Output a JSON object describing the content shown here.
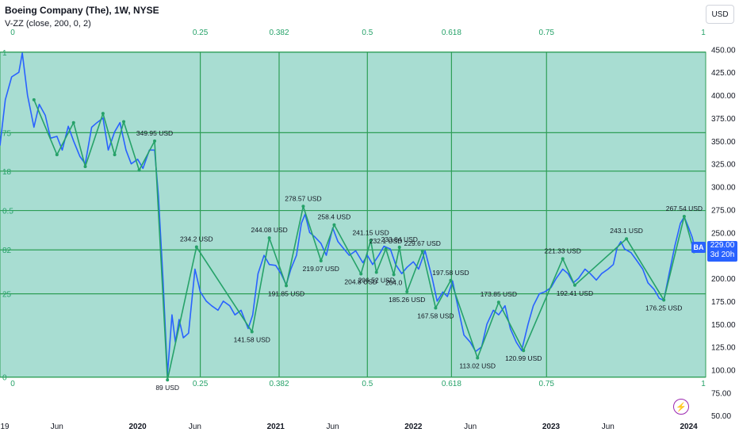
{
  "header": {
    "title": "Boeing Company (The), 1W, NYSE",
    "indicator": "V-ZZ (close, 200, 0, 2)"
  },
  "toolbar": {
    "currency_label": "USD"
  },
  "price_tag": {
    "symbol": "BA",
    "price": "229.00",
    "countdown": "3d 20h"
  },
  "icons": {
    "alert": "lightning-icon"
  },
  "colors": {
    "price_line": "#2962ff",
    "zigzag": "#26a269",
    "fib_fill": "#a8ddd2",
    "fib_lines": "#2e9e57",
    "fib_labels": "#26a269"
  },
  "chart_data": {
    "type": "line",
    "title": "Boeing Company (The), 1W, NYSE",
    "y_axis": {
      "ticks": [
        "450.00",
        "425.00",
        "400.00",
        "375.00",
        "350.00",
        "325.00",
        "300.00",
        "275.00",
        "250.00",
        "225.00",
        "200.00",
        "175.00",
        "150.00",
        "125.00",
        "100.00",
        "75.00",
        "50.00"
      ],
      "ylim": [
        45,
        465
      ],
      "currency": "USD"
    },
    "x_axis": {
      "ticks": [
        {
          "label": "19",
          "x": "2019-01-01"
        },
        {
          "label": "Jun",
          "x": "2019-06-01"
        },
        {
          "label": "2020",
          "x": "2020-01-01"
        },
        {
          "label": "Jun",
          "x": "2020-06-01"
        },
        {
          "label": "2021",
          "x": "2021-01-01"
        },
        {
          "label": "Jun",
          "x": "2021-06-01"
        },
        {
          "label": "2022",
          "x": "2022-01-01"
        },
        {
          "label": "Jun",
          "x": "2022-06-01"
        },
        {
          "label": "2023",
          "x": "2023-01-01"
        },
        {
          "label": "Jun",
          "x": "2023-06-01"
        },
        {
          "label": "2024",
          "x": "2024-01-01"
        }
      ],
      "xlim": [
        "2019-01-01",
        "2024-02-15"
      ]
    },
    "fib_time": {
      "top_labels": [
        "0",
        "0.25",
        "0.382",
        "0.5",
        "0.618",
        "0.75",
        "1"
      ],
      "bottom_labels": [
        "0",
        "0.25",
        "0.382",
        "0.5",
        "0.618",
        "0.75",
        "1"
      ],
      "vertical_lines": [
        {
          "label": "0.25",
          "x": "2020-06-15"
        },
        {
          "label": "0.382",
          "x": "2021-01-10"
        },
        {
          "label": "0.5",
          "x": "2021-09-01"
        },
        {
          "label": "0.618",
          "x": "2022-04-12"
        },
        {
          "label": "0.75",
          "x": "2022-12-20"
        }
      ],
      "left_labels": [
        {
          "label": "1",
          "y": 447
        },
        {
          "label": "75",
          "y": 359
        },
        {
          "label": "18",
          "y": 317
        },
        {
          "label": "0.5",
          "y": 274
        },
        {
          "label": "82",
          "y": 231
        },
        {
          "label": "25",
          "y": 183
        },
        {
          "label": "0",
          "y": 92
        }
      ],
      "horizontal_levels": [
        447,
        359,
        317,
        274,
        231,
        183,
        92
      ],
      "box": {
        "x0": "2019-01-01",
        "x1": "2024-02-15",
        "y0": 92,
        "y1": 447
      }
    },
    "series": [
      {
        "type": "line",
        "values": [
          {
            "x": "2019-01-01",
            "y": 345
          },
          {
            "x": "2019-01-15",
            "y": 395
          },
          {
            "x": "2019-02-01",
            "y": 420
          },
          {
            "x": "2019-02-20",
            "y": 425
          },
          {
            "x": "2019-03-01",
            "y": 446
          },
          {
            "x": "2019-03-15",
            "y": 400
          },
          {
            "x": "2019-04-01",
            "y": 365
          },
          {
            "x": "2019-04-15",
            "y": 390
          },
          {
            "x": "2019-05-01",
            "y": 378
          },
          {
            "x": "2019-05-15",
            "y": 353
          },
          {
            "x": "2019-06-01",
            "y": 355
          },
          {
            "x": "2019-06-15",
            "y": 340
          },
          {
            "x": "2019-07-01",
            "y": 366
          },
          {
            "x": "2019-07-15",
            "y": 350
          },
          {
            "x": "2019-08-01",
            "y": 333
          },
          {
            "x": "2019-08-15",
            "y": 325
          },
          {
            "x": "2019-09-01",
            "y": 365
          },
          {
            "x": "2019-09-15",
            "y": 370
          },
          {
            "x": "2019-10-01",
            "y": 375
          },
          {
            "x": "2019-10-15",
            "y": 340
          },
          {
            "x": "2019-11-01",
            "y": 360
          },
          {
            "x": "2019-11-15",
            "y": 370
          },
          {
            "x": "2019-12-01",
            "y": 340
          },
          {
            "x": "2019-12-15",
            "y": 325
          },
          {
            "x": "2020-01-01",
            "y": 330
          },
          {
            "x": "2020-01-15",
            "y": 320
          },
          {
            "x": "2020-02-01",
            "y": 340
          },
          {
            "x": "2020-02-15",
            "y": 340
          },
          {
            "x": "2020-02-25",
            "y": 290
          },
          {
            "x": "2020-03-08",
            "y": 200
          },
          {
            "x": "2020-03-20",
            "y": 95
          },
          {
            "x": "2020-04-01",
            "y": 160
          },
          {
            "x": "2020-04-10",
            "y": 130
          },
          {
            "x": "2020-04-20",
            "y": 155
          },
          {
            "x": "2020-05-01",
            "y": 135
          },
          {
            "x": "2020-05-15",
            "y": 140
          },
          {
            "x": "2020-06-01",
            "y": 210
          },
          {
            "x": "2020-06-15",
            "y": 185
          },
          {
            "x": "2020-07-01",
            "y": 175
          },
          {
            "x": "2020-07-15",
            "y": 170
          },
          {
            "x": "2020-08-01",
            "y": 165
          },
          {
            "x": "2020-08-15",
            "y": 175
          },
          {
            "x": "2020-09-01",
            "y": 170
          },
          {
            "x": "2020-09-15",
            "y": 160
          },
          {
            "x": "2020-10-01",
            "y": 165
          },
          {
            "x": "2020-10-20",
            "y": 145
          },
          {
            "x": "2020-11-01",
            "y": 160
          },
          {
            "x": "2020-11-15",
            "y": 205
          },
          {
            "x": "2020-12-01",
            "y": 225
          },
          {
            "x": "2020-12-15",
            "y": 215
          },
          {
            "x": "2021-01-01",
            "y": 214
          },
          {
            "x": "2021-01-15",
            "y": 205
          },
          {
            "x": "2021-01-29",
            "y": 193
          },
          {
            "x": "2021-02-10",
            "y": 210
          },
          {
            "x": "2021-02-25",
            "y": 225
          },
          {
            "x": "2021-03-10",
            "y": 260
          },
          {
            "x": "2021-03-20",
            "y": 270
          },
          {
            "x": "2021-04-01",
            "y": 250
          },
          {
            "x": "2021-04-15",
            "y": 245
          },
          {
            "x": "2021-05-01",
            "y": 238
          },
          {
            "x": "2021-05-15",
            "y": 225
          },
          {
            "x": "2021-06-01",
            "y": 255
          },
          {
            "x": "2021-06-15",
            "y": 240
          },
          {
            "x": "2021-07-01",
            "y": 232
          },
          {
            "x": "2021-07-15",
            "y": 225
          },
          {
            "x": "2021-08-01",
            "y": 230
          },
          {
            "x": "2021-08-20",
            "y": 217
          },
          {
            "x": "2021-09-01",
            "y": 225
          },
          {
            "x": "2021-09-15",
            "y": 215
          },
          {
            "x": "2021-10-01",
            "y": 225
          },
          {
            "x": "2021-10-15",
            "y": 235
          },
          {
            "x": "2021-11-01",
            "y": 232
          },
          {
            "x": "2021-11-15",
            "y": 215
          },
          {
            "x": "2021-12-01",
            "y": 205
          },
          {
            "x": "2021-12-15",
            "y": 212
          },
          {
            "x": "2022-01-01",
            "y": 218
          },
          {
            "x": "2022-01-15",
            "y": 210
          },
          {
            "x": "2022-02-01",
            "y": 230
          },
          {
            "x": "2022-02-20",
            "y": 200
          },
          {
            "x": "2022-03-05",
            "y": 175
          },
          {
            "x": "2022-03-20",
            "y": 185
          },
          {
            "x": "2022-04-01",
            "y": 180
          },
          {
            "x": "2022-04-15",
            "y": 197
          },
          {
            "x": "2022-05-01",
            "y": 165
          },
          {
            "x": "2022-05-15",
            "y": 138
          },
          {
            "x": "2022-06-01",
            "y": 130
          },
          {
            "x": "2022-06-15",
            "y": 120
          },
          {
            "x": "2022-07-01",
            "y": 125
          },
          {
            "x": "2022-07-15",
            "y": 150
          },
          {
            "x": "2022-08-01",
            "y": 165
          },
          {
            "x": "2022-08-15",
            "y": 160
          },
          {
            "x": "2022-09-01",
            "y": 170
          },
          {
            "x": "2022-09-15",
            "y": 145
          },
          {
            "x": "2022-10-01",
            "y": 130
          },
          {
            "x": "2022-10-15",
            "y": 121
          },
          {
            "x": "2022-11-01",
            "y": 150
          },
          {
            "x": "2022-11-15",
            "y": 170
          },
          {
            "x": "2022-12-01",
            "y": 183
          },
          {
            "x": "2022-12-15",
            "y": 185
          },
          {
            "x": "2023-01-01",
            "y": 190
          },
          {
            "x": "2023-01-15",
            "y": 200
          },
          {
            "x": "2023-02-01",
            "y": 210
          },
          {
            "x": "2023-02-15",
            "y": 205
          },
          {
            "x": "2023-03-01",
            "y": 195
          },
          {
            "x": "2023-03-15",
            "y": 200
          },
          {
            "x": "2023-04-01",
            "y": 210
          },
          {
            "x": "2023-04-15",
            "y": 205
          },
          {
            "x": "2023-05-01",
            "y": 198
          },
          {
            "x": "2023-05-15",
            "y": 205
          },
          {
            "x": "2023-06-01",
            "y": 210
          },
          {
            "x": "2023-06-15",
            "y": 215
          },
          {
            "x": "2023-06-25",
            "y": 233
          },
          {
            "x": "2023-07-05",
            "y": 240
          },
          {
            "x": "2023-07-15",
            "y": 232
          },
          {
            "x": "2023-08-01",
            "y": 228
          },
          {
            "x": "2023-08-15",
            "y": 220
          },
          {
            "x": "2023-09-01",
            "y": 210
          },
          {
            "x": "2023-09-15",
            "y": 195
          },
          {
            "x": "2023-10-01",
            "y": 188
          },
          {
            "x": "2023-10-15",
            "y": 178
          },
          {
            "x": "2023-10-27",
            "y": 176
          },
          {
            "x": "2023-11-10",
            "y": 205
          },
          {
            "x": "2023-11-25",
            "y": 235
          },
          {
            "x": "2023-12-10",
            "y": 260
          },
          {
            "x": "2023-12-20",
            "y": 267
          },
          {
            "x": "2024-01-01",
            "y": 255
          },
          {
            "x": "2024-01-10",
            "y": 245
          },
          {
            "x": "2024-01-20",
            "y": 229
          }
        ]
      },
      {
        "type": "zigzag",
        "values": [
          {
            "x": "2019-04-01",
            "y": 395
          },
          {
            "x": "2019-06-01",
            "y": 335
          },
          {
            "x": "2019-07-15",
            "y": 370
          },
          {
            "x": "2019-08-15",
            "y": 322
          },
          {
            "x": "2019-10-01",
            "y": 380
          },
          {
            "x": "2019-11-01",
            "y": 335
          },
          {
            "x": "2019-11-25",
            "y": 371
          },
          {
            "x": "2020-01-05",
            "y": 318
          },
          {
            "x": "2020-02-15",
            "y": 349.95
          },
          {
            "x": "2020-03-20",
            "y": 89
          },
          {
            "x": "2020-06-05",
            "y": 234.2
          },
          {
            "x": "2020-10-30",
            "y": 141.58
          },
          {
            "x": "2020-12-15",
            "y": 244.08
          },
          {
            "x": "2021-01-29",
            "y": 191.85
          },
          {
            "x": "2021-03-15",
            "y": 278.57
          },
          {
            "x": "2021-05-01",
            "y": 219.07
          },
          {
            "x": "2021-06-05",
            "y": 258.4
          },
          {
            "x": "2021-08-15",
            "y": 204.8
          },
          {
            "x": "2021-09-10",
            "y": 241.15
          },
          {
            "x": "2021-09-25",
            "y": 206.52
          },
          {
            "x": "2021-10-20",
            "y": 232.1
          },
          {
            "x": "2021-11-10",
            "y": 204.0
          },
          {
            "x": "2021-11-25",
            "y": 233.84
          },
          {
            "x": "2021-12-15",
            "y": 185.26
          },
          {
            "x": "2022-01-25",
            "y": 229.67
          },
          {
            "x": "2022-03-01",
            "y": 167.58
          },
          {
            "x": "2022-04-10",
            "y": 197.58
          },
          {
            "x": "2022-06-20",
            "y": 113.02
          },
          {
            "x": "2022-08-15",
            "y": 173.85
          },
          {
            "x": "2022-10-20",
            "y": 120.99
          },
          {
            "x": "2023-02-01",
            "y": 221.33
          },
          {
            "x": "2023-03-05",
            "y": 192.41
          },
          {
            "x": "2023-07-20",
            "y": 243.1
          },
          {
            "x": "2023-10-27",
            "y": 176.25
          },
          {
            "x": "2023-12-20",
            "y": 267.54
          },
          {
            "x": "2024-01-15",
            "y": 229
          }
        ]
      }
    ],
    "annotations": [
      {
        "text": "349.95 USD",
        "x": "2020-02-15",
        "y": 349.95,
        "pos": "above"
      },
      {
        "text": "89 USD",
        "x": "2020-03-20",
        "y": 89,
        "pos": "below"
      },
      {
        "text": "234.2 USD",
        "x": "2020-06-05",
        "y": 234.2,
        "pos": "above"
      },
      {
        "text": "141.58 USD",
        "x": "2020-10-30",
        "y": 141.58,
        "pos": "below"
      },
      {
        "text": "244.08 USD",
        "x": "2020-12-15",
        "y": 244.08,
        "pos": "above"
      },
      {
        "text": "191.85 USD",
        "x": "2021-01-29",
        "y": 191.85,
        "pos": "below"
      },
      {
        "text": "278.57 USD",
        "x": "2021-03-15",
        "y": 278.57,
        "pos": "above"
      },
      {
        "text": "219.07 USD",
        "x": "2021-05-01",
        "y": 219.07,
        "pos": "below"
      },
      {
        "text": "258.4 USD",
        "x": "2021-06-05",
        "y": 258.4,
        "pos": "above"
      },
      {
        "text": "204.8 USD",
        "x": "2021-08-15",
        "y": 204.8,
        "pos": "below"
      },
      {
        "text": "241.15 USD",
        "x": "2021-09-10",
        "y": 241.15,
        "pos": "above"
      },
      {
        "text": "206.52 USD",
        "x": "2021-09-25",
        "y": 206.52,
        "pos": "below"
      },
      {
        "text": "232.1 USD",
        "x": "2021-10-20",
        "y": 232.1,
        "pos": "above"
      },
      {
        "text": "204.0",
        "x": "2021-11-10",
        "y": 204.0,
        "pos": "below"
      },
      {
        "text": "233.84 USD",
        "x": "2021-11-25",
        "y": 233.84,
        "pos": "above"
      },
      {
        "text": "185.26 USD",
        "x": "2021-12-15",
        "y": 185.26,
        "pos": "below"
      },
      {
        "text": "229.67 USD",
        "x": "2022-01-25",
        "y": 229.67,
        "pos": "above"
      },
      {
        "text": "167.58 USD",
        "x": "2022-03-01",
        "y": 167.58,
        "pos": "below"
      },
      {
        "text": "197.58 USD",
        "x": "2022-04-10",
        "y": 197.58,
        "pos": "above"
      },
      {
        "text": "113.02 USD",
        "x": "2022-06-20",
        "y": 113.02,
        "pos": "below"
      },
      {
        "text": "173.85 USD",
        "x": "2022-08-15",
        "y": 173.85,
        "pos": "above"
      },
      {
        "text": "120.99 USD",
        "x": "2022-10-20",
        "y": 120.99,
        "pos": "below"
      },
      {
        "text": "221.33 USD",
        "x": "2023-02-01",
        "y": 221.33,
        "pos": "above"
      },
      {
        "text": "192.41 USD",
        "x": "2023-03-05",
        "y": 192.41,
        "pos": "below"
      },
      {
        "text": "243.1 USD",
        "x": "2023-07-20",
        "y": 243.1,
        "pos": "above"
      },
      {
        "text": "176.25 USD",
        "x": "2023-10-27",
        "y": 176.25,
        "pos": "below"
      },
      {
        "text": "267.54 USD",
        "x": "2023-12-20",
        "y": 267.54,
        "pos": "above"
      }
    ],
    "grid": false,
    "legend": "none"
  }
}
